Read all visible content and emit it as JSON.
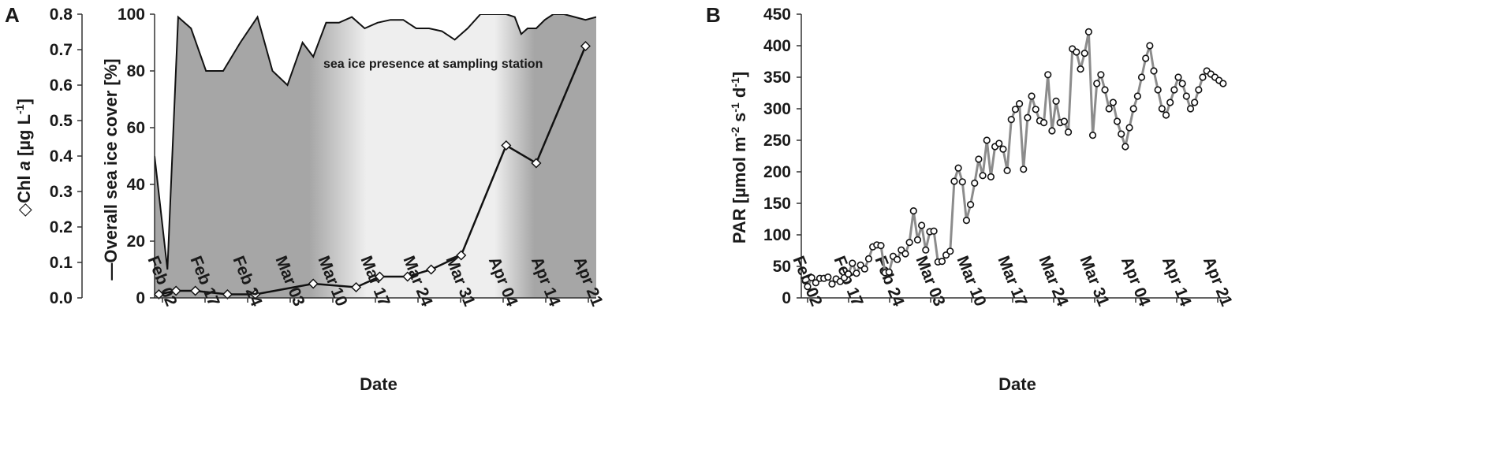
{
  "panels": {
    "a_letter": "A",
    "b_letter": "B"
  },
  "chart_data": [
    {
      "panel": "A",
      "type": "line",
      "xlabel": "Date",
      "y_left_label_parts": [
        "Chl ",
        "a",
        " [µg L",
        "-1",
        "]"
      ],
      "y_left_marker_symbol": "◇",
      "y_right_label": "Overall sea ice cover [%]",
      "y_right_marker_symbol": "—",
      "annotation": "sea ice presence at sampling station",
      "x_ticks": [
        "Feb 02",
        "Feb 17",
        "Feb 24",
        "Mar 03",
        "Mar 10",
        "Mar 17",
        "Mar 24",
        "Mar 31",
        "Apr 04",
        "Apr 14",
        "Apr 21"
      ],
      "ylim_left": [
        0,
        0.8
      ],
      "yticks_left": [
        "0.0",
        "0.1",
        "0.2",
        "0.3",
        "0.4",
        "0.5",
        "0.6",
        "0.7",
        "0.8"
      ],
      "ylim_right": [
        0,
        100
      ],
      "yticks_right": [
        "0",
        "20",
        "40",
        "60",
        "80",
        "100"
      ],
      "background_shading": "ice presence gradient: dark grey early, fading to light grey mid-March to early April, dark again at end",
      "series": [
        {
          "name": "Overall sea ice cover [%]",
          "axis": "right",
          "style": "filled area, black outline",
          "x": [
            0.0,
            0.3,
            0.55,
            0.85,
            1.2,
            1.6,
            2.0,
            2.4,
            2.75,
            3.1,
            3.45,
            3.7,
            4.0,
            4.3,
            4.6,
            4.9,
            5.2,
            5.5,
            5.8,
            6.1,
            6.4,
            6.7,
            7.0,
            7.3,
            7.6,
            7.9,
            8.2,
            8.4,
            8.55,
            8.7,
            8.9,
            9.1,
            9.3,
            9.55,
            9.8,
            10.05,
            10.3
          ],
          "y": [
            50,
            10,
            99,
            95,
            80,
            80,
            90,
            99,
            80,
            75,
            90,
            85,
            97,
            97,
            99,
            95,
            97,
            98,
            98,
            95,
            95,
            94,
            91,
            95,
            100,
            100,
            100,
            99,
            93,
            95,
            95,
            98,
            100,
            100,
            99,
            98,
            99
          ]
        },
        {
          "name": "Chl a [µg L-1]",
          "axis": "left",
          "style": "line with open diamond markers",
          "x": [
            0.1,
            0.5,
            0.95,
            1.7,
            2.35,
            3.7,
            4.7,
            5.25,
            5.9,
            6.45,
            7.15,
            8.2,
            8.9,
            10.05
          ],
          "y": [
            0.01,
            0.02,
            0.02,
            0.01,
            0.01,
            0.04,
            0.03,
            0.06,
            0.06,
            0.08,
            0.12,
            0.43,
            0.38,
            0.71
          ]
        }
      ]
    },
    {
      "panel": "B",
      "type": "line",
      "xlabel": "Date",
      "ylabel_parts": [
        "PAR [µmol m",
        "-2",
        " s",
        "-1",
        " d",
        "-1",
        "]"
      ],
      "x_ticks": [
        "Feb 02",
        "Feb 17",
        "Feb 24",
        "Mar 03",
        "Mar 10",
        "Mar 17",
        "Mar 24",
        "Mar 31",
        "Apr 04",
        "Apr 14",
        "Apr 21"
      ],
      "ylim": [
        0,
        450
      ],
      "yticks": [
        "0",
        "50",
        "100",
        "150",
        "200",
        "250",
        "300",
        "350",
        "400",
        "450"
      ],
      "series": [
        {
          "name": "PAR",
          "style": "grey line with open circle markers",
          "x": [
            0.0,
            0.1,
            0.2,
            0.3,
            0.4,
            0.5,
            0.6,
            0.7,
            0.8,
            0.9,
            1.0,
            1.1,
            1.2,
            1.3,
            1.4,
            1.5,
            1.6,
            1.7,
            1.8,
            1.9,
            2.0,
            2.1,
            2.2,
            2.3,
            2.4,
            2.5,
            2.6,
            2.7,
            2.8,
            2.9,
            3.0,
            3.1,
            3.2,
            3.3,
            3.4,
            3.5,
            3.6,
            3.7,
            3.8,
            3.9,
            4.0,
            4.1,
            4.2,
            4.3,
            4.4,
            4.5,
            4.6,
            4.7,
            4.8,
            4.9,
            5.0,
            5.1,
            5.2,
            5.3,
            5.4,
            5.5,
            5.6,
            5.7,
            5.8,
            5.9,
            6.0,
            6.1,
            6.2,
            6.3,
            6.4,
            6.5,
            6.6,
            6.7,
            6.8,
            6.9,
            7.0,
            7.1,
            7.2,
            7.3,
            7.4,
            7.5,
            7.6,
            7.7,
            7.8,
            7.9,
            8.0,
            8.1,
            8.2,
            8.3,
            8.4,
            8.5,
            8.6,
            8.7,
            8.8,
            8.9,
            9.0,
            9.1,
            9.2,
            9.3,
            9.4,
            9.5,
            9.6,
            9.7,
            9.8,
            9.9,
            10.0,
            10.1,
            10.2
          ],
          "y": [
            18,
            32,
            24,
            31,
            31,
            33,
            22,
            30,
            26,
            32,
            38,
            55,
            39,
            52,
            46,
            62,
            81,
            84,
            83,
            40,
            41,
            66,
            61,
            76,
            70,
            88,
            138,
            92,
            115,
            76,
            105,
            106,
            57,
            58,
            68,
            74,
            185,
            206,
            184,
            123,
            148,
            182,
            220,
            194,
            250,
            192,
            240,
            245,
            236,
            202,
            283,
            299,
            308,
            204,
            286,
            320,
            299,
            281,
            278,
            354,
            265,
            312,
            278,
            280,
            263,
            395,
            390,
            363,
            388,
            422,
            258,
            340,
            354,
            330,
            300,
            310,
            280,
            260,
            240,
            270,
            300,
            320,
            350,
            380,
            400,
            360,
            330,
            300,
            290,
            310,
            330,
            350,
            340,
            320,
            300,
            310,
            330,
            350,
            360,
            355,
            350,
            345,
            340
          ]
        }
      ]
    }
  ]
}
